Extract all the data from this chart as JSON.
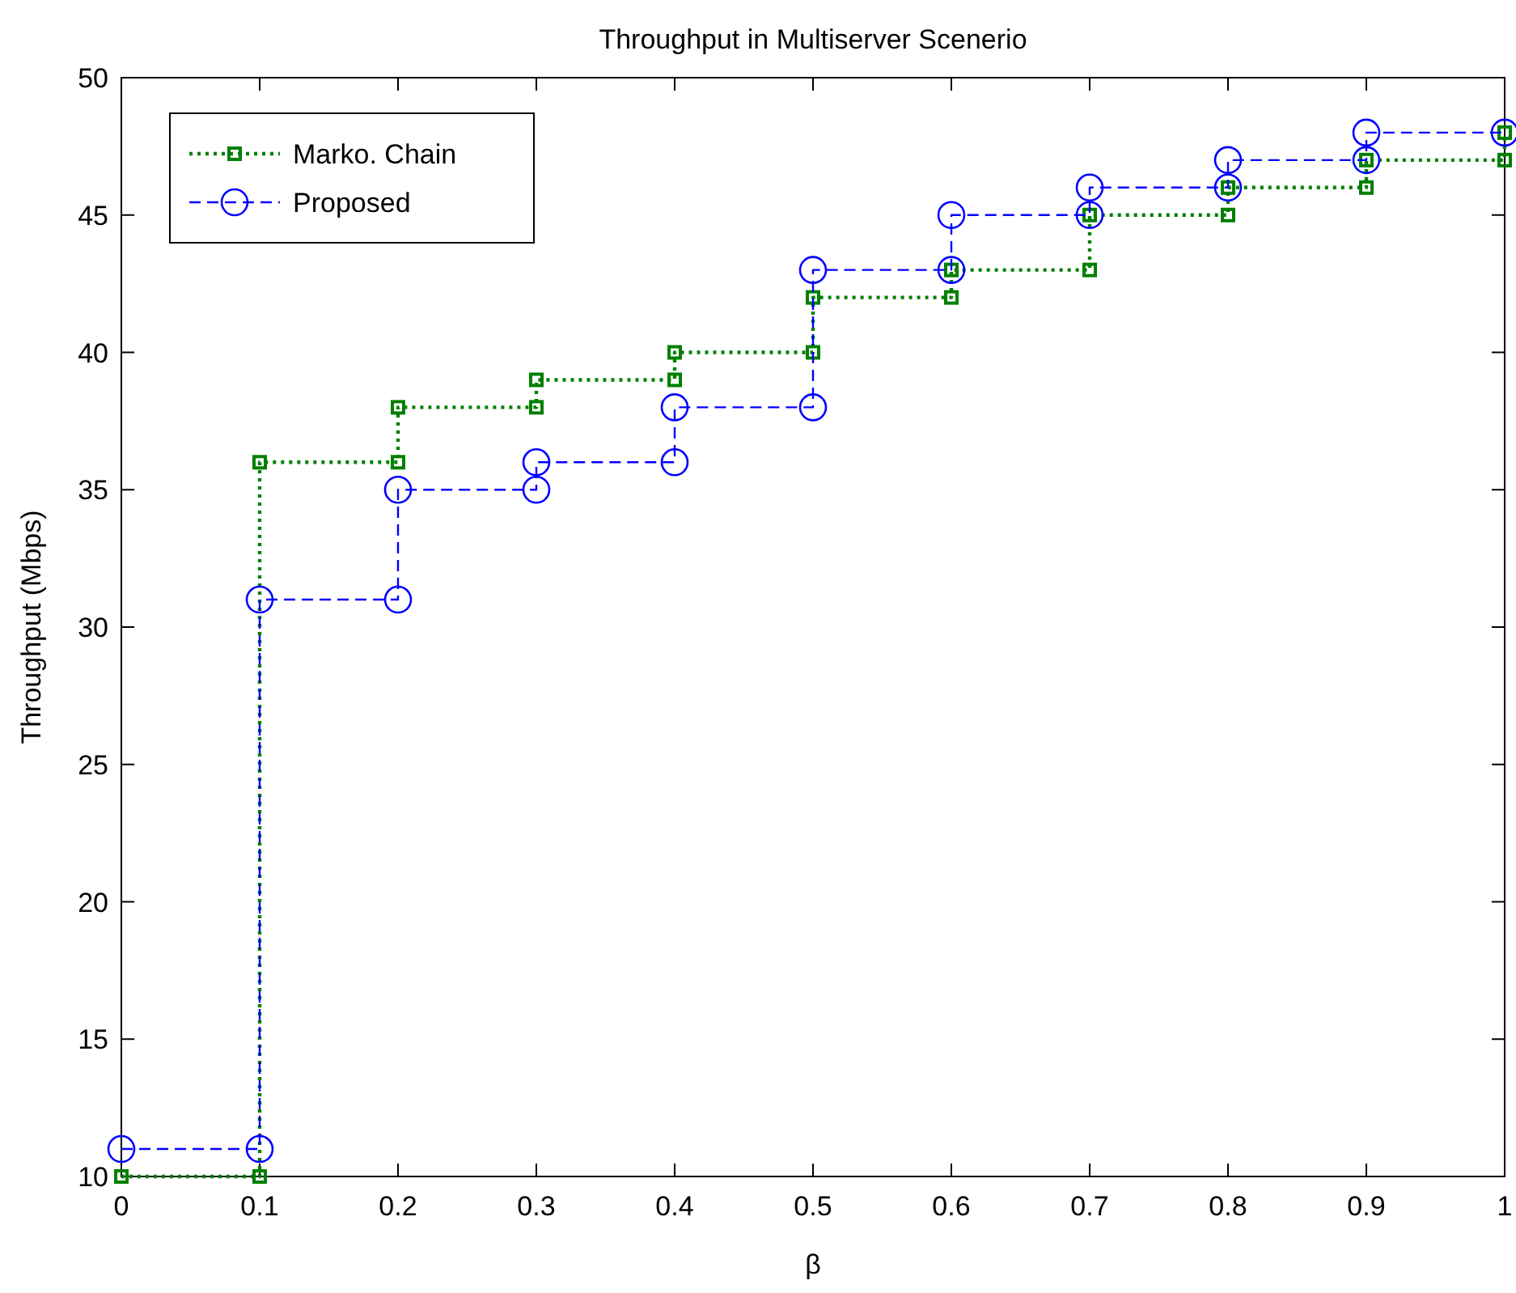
{
  "chart_data": {
    "type": "line",
    "title": "Throughput in Multiserver Scenerio",
    "xlabel": "β",
    "ylabel": "Throughput (Mbps)",
    "xlim": [
      0,
      1
    ],
    "xticks": [
      0,
      0.1,
      0.2,
      0.3,
      0.4,
      0.5,
      0.6,
      0.7,
      0.8,
      0.9,
      1
    ],
    "ylim": [
      10,
      50
    ],
    "yticks": [
      10,
      15,
      20,
      25,
      30,
      35,
      40,
      45,
      50
    ],
    "grid": false,
    "legend": "top left",
    "series": [
      {
        "name": "Marko. Chain",
        "color": "#008000",
        "marker": "square",
        "line_style": "dotted",
        "x": [
          0,
          0.1,
          0.1,
          0.2,
          0.2,
          0.3,
          0.3,
          0.4,
          0.4,
          0.5,
          0.5,
          0.6,
          0.6,
          0.7,
          0.7,
          0.8,
          0.8,
          0.9,
          0.9,
          1,
          1
        ],
        "values": [
          10,
          10,
          36,
          36,
          38,
          38,
          39,
          39,
          40,
          40,
          42,
          42,
          43,
          43,
          45,
          45,
          46,
          46,
          47,
          47,
          48
        ]
      },
      {
        "name": "Proposed",
        "color": "#0000ff",
        "marker": "circle",
        "line_style": "dashed",
        "x": [
          0,
          0.1,
          0.1,
          0.2,
          0.2,
          0.3,
          0.3,
          0.4,
          0.4,
          0.5,
          0.5,
          0.6,
          0.6,
          0.7,
          0.7,
          0.8,
          0.8,
          0.9,
          0.9,
          1
        ],
        "values": [
          11,
          11,
          31,
          31,
          35,
          35,
          36,
          36,
          38,
          38,
          43,
          43,
          45,
          45,
          46,
          46,
          47,
          47,
          48,
          48
        ]
      }
    ]
  }
}
